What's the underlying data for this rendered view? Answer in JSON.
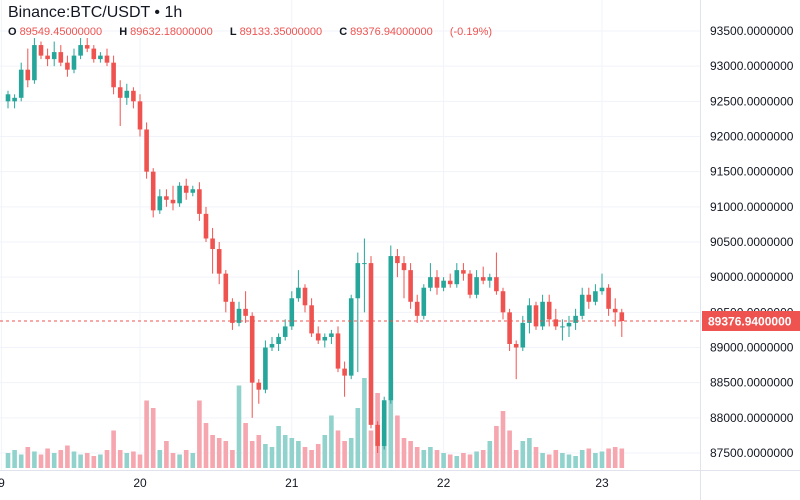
{
  "header": {
    "title": "Binance:BTC/USDT • 1h",
    "open_label": "O",
    "open": "89549.45000000",
    "high_label": "H",
    "high": "89632.18000000",
    "low_label": "L",
    "low": "89133.35000000",
    "close_label": "C",
    "close": "89376.94000000",
    "change": "(-0.19%)"
  },
  "colors": {
    "up": "#26a69a",
    "down": "#ef5350",
    "up_volume": "#92d2cc",
    "down_volume": "#f5a6ae",
    "price_line": "#ef5350",
    "grid": "#f0f3fa"
  },
  "chart_data": {
    "type": "candlestick",
    "symbol": "Binance:BTC/USDT",
    "interval": "1h",
    "ylim": [
      87300,
      93800
    ],
    "yticks": [
      "93500.0000000",
      "93000.0000000",
      "92500.0000000",
      "92000.0000000",
      "91500.0000000",
      "91000.0000000",
      "90500.0000000",
      "90000.0000000",
      "89500.0000000",
      "89000.0000000",
      "88500.0000000",
      "88000.0000000",
      "87500.0000000"
    ],
    "xticks": [
      {
        "label": "9",
        "index": -1
      },
      {
        "label": "20",
        "index": 20
      },
      {
        "label": "21",
        "index": 43
      },
      {
        "label": "22",
        "index": 66
      },
      {
        "label": "23",
        "index": 90
      }
    ],
    "last_price": 89376.94,
    "last_price_label": "89376.9400000",
    "candles": [
      {
        "o": 92500,
        "h": 92650,
        "l": 92400,
        "c": 92600
      },
      {
        "o": 92500,
        "h": 92600,
        "l": 92400,
        "c": 92550
      },
      {
        "o": 92550,
        "h": 93050,
        "l": 92500,
        "c": 92950
      },
      {
        "o": 92950,
        "h": 93250,
        "l": 92700,
        "c": 92800
      },
      {
        "o": 92800,
        "h": 93400,
        "l": 92750,
        "c": 93300
      },
      {
        "o": 93300,
        "h": 93350,
        "l": 93100,
        "c": 93150
      },
      {
        "o": 93150,
        "h": 93250,
        "l": 93000,
        "c": 93100
      },
      {
        "o": 93100,
        "h": 93350,
        "l": 93000,
        "c": 93200
      },
      {
        "o": 93200,
        "h": 93300,
        "l": 93000,
        "c": 93050
      },
      {
        "o": 93050,
        "h": 93150,
        "l": 92850,
        "c": 92950
      },
      {
        "o": 92950,
        "h": 93250,
        "l": 92900,
        "c": 93150
      },
      {
        "o": 93150,
        "h": 93400,
        "l": 93100,
        "c": 93300
      },
      {
        "o": 93300,
        "h": 93400,
        "l": 93200,
        "c": 93250
      },
      {
        "o": 93250,
        "h": 93300,
        "l": 93050,
        "c": 93100
      },
      {
        "o": 93100,
        "h": 93200,
        "l": 93050,
        "c": 93150
      },
      {
        "o": 93150,
        "h": 93250,
        "l": 93000,
        "c": 93050
      },
      {
        "o": 93050,
        "h": 93150,
        "l": 92600,
        "c": 92700
      },
      {
        "o": 92700,
        "h": 92800,
        "l": 92150,
        "c": 92550
      },
      {
        "o": 92550,
        "h": 92750,
        "l": 92450,
        "c": 92650
      },
      {
        "o": 92650,
        "h": 92700,
        "l": 92400,
        "c": 92500
      },
      {
        "o": 92500,
        "h": 92600,
        "l": 92000,
        "c": 92100
      },
      {
        "o": 92100,
        "h": 92200,
        "l": 91400,
        "c": 91500
      },
      {
        "o": 91500,
        "h": 91550,
        "l": 90850,
        "c": 90950
      },
      {
        "o": 90950,
        "h": 91250,
        "l": 90900,
        "c": 91150
      },
      {
        "o": 91150,
        "h": 91250,
        "l": 91000,
        "c": 91100
      },
      {
        "o": 91100,
        "h": 91300,
        "l": 90950,
        "c": 91050
      },
      {
        "o": 91050,
        "h": 91350,
        "l": 91000,
        "c": 91300
      },
      {
        "o": 91300,
        "h": 91400,
        "l": 91100,
        "c": 91200
      },
      {
        "o": 91200,
        "h": 91300,
        "l": 91150,
        "c": 91250
      },
      {
        "o": 91250,
        "h": 91350,
        "l": 90800,
        "c": 90900
      },
      {
        "o": 90900,
        "h": 91000,
        "l": 90500,
        "c": 90550
      },
      {
        "o": 90550,
        "h": 90700,
        "l": 90050,
        "c": 90400
      },
      {
        "o": 90400,
        "h": 90500,
        "l": 89900,
        "c": 90050
      },
      {
        "o": 90050,
        "h": 90100,
        "l": 89500,
        "c": 89650
      },
      {
        "o": 89650,
        "h": 89700,
        "l": 89250,
        "c": 89350
      },
      {
        "o": 89350,
        "h": 89650,
        "l": 89300,
        "c": 89550
      },
      {
        "o": 89550,
        "h": 89800,
        "l": 89350,
        "c": 89450
      },
      {
        "o": 89450,
        "h": 89500,
        "l": 88000,
        "c": 88500
      },
      {
        "o": 88500,
        "h": 88550,
        "l": 88200,
        "c": 88400
      },
      {
        "o": 88400,
        "h": 89100,
        "l": 88350,
        "c": 89000
      },
      {
        "o": 89000,
        "h": 89150,
        "l": 88950,
        "c": 89050
      },
      {
        "o": 89050,
        "h": 89200,
        "l": 88950,
        "c": 89150
      },
      {
        "o": 89150,
        "h": 89400,
        "l": 89100,
        "c": 89300
      },
      {
        "o": 89300,
        "h": 89800,
        "l": 89250,
        "c": 89700
      },
      {
        "o": 89700,
        "h": 90100,
        "l": 89650,
        "c": 89850
      },
      {
        "o": 89850,
        "h": 89900,
        "l": 89500,
        "c": 89600
      },
      {
        "o": 89600,
        "h": 89700,
        "l": 89150,
        "c": 89200
      },
      {
        "o": 89200,
        "h": 89300,
        "l": 89050,
        "c": 89100
      },
      {
        "o": 89100,
        "h": 89200,
        "l": 89000,
        "c": 89150
      },
      {
        "o": 89150,
        "h": 89250,
        "l": 89050,
        "c": 89200
      },
      {
        "o": 89200,
        "h": 89300,
        "l": 88650,
        "c": 88700
      },
      {
        "o": 88700,
        "h": 88800,
        "l": 88300,
        "c": 88600
      },
      {
        "o": 88600,
        "h": 89750,
        "l": 88550,
        "c": 89700
      },
      {
        "o": 89700,
        "h": 90350,
        "l": 88650,
        "c": 90200
      },
      {
        "o": 90200,
        "h": 90550,
        "l": 89500,
        "c": 90200
      },
      {
        "o": 90200,
        "h": 90300,
        "l": 87850,
        "c": 87900
      },
      {
        "o": 87900,
        "h": 87950,
        "l": 87500,
        "c": 87600
      },
      {
        "o": 87600,
        "h": 88300,
        "l": 87550,
        "c": 88250
      },
      {
        "o": 88250,
        "h": 90450,
        "l": 88200,
        "c": 90300
      },
      {
        "o": 90300,
        "h": 90400,
        "l": 90000,
        "c": 90200
      },
      {
        "o": 90200,
        "h": 90300,
        "l": 89700,
        "c": 90100
      },
      {
        "o": 90100,
        "h": 90200,
        "l": 89550,
        "c": 89650
      },
      {
        "o": 89650,
        "h": 89750,
        "l": 89350,
        "c": 89450
      },
      {
        "o": 89450,
        "h": 89900,
        "l": 89400,
        "c": 89850
      },
      {
        "o": 89850,
        "h": 90200,
        "l": 89800,
        "c": 90000
      },
      {
        "o": 90000,
        "h": 90100,
        "l": 89750,
        "c": 89850
      },
      {
        "o": 89850,
        "h": 90000,
        "l": 89800,
        "c": 89950
      },
      {
        "o": 89950,
        "h": 90050,
        "l": 89850,
        "c": 89900
      },
      {
        "o": 89900,
        "h": 90200,
        "l": 89850,
        "c": 90100
      },
      {
        "o": 90100,
        "h": 90200,
        "l": 89950,
        "c": 90050
      },
      {
        "o": 90050,
        "h": 90100,
        "l": 89700,
        "c": 89750
      },
      {
        "o": 89750,
        "h": 90100,
        "l": 89700,
        "c": 90000
      },
      {
        "o": 90000,
        "h": 90150,
        "l": 89900,
        "c": 89950
      },
      {
        "o": 89950,
        "h": 90050,
        "l": 89850,
        "c": 90000
      },
      {
        "o": 90000,
        "h": 90350,
        "l": 89750,
        "c": 89800
      },
      {
        "o": 89800,
        "h": 89850,
        "l": 89400,
        "c": 89500
      },
      {
        "o": 89500,
        "h": 89550,
        "l": 88950,
        "c": 89050
      },
      {
        "o": 89050,
        "h": 89100,
        "l": 88550,
        "c": 89000
      },
      {
        "o": 89000,
        "h": 89450,
        "l": 88950,
        "c": 89350
      },
      {
        "o": 89350,
        "h": 89700,
        "l": 89200,
        "c": 89600
      },
      {
        "o": 89600,
        "h": 89650,
        "l": 89250,
        "c": 89300
      },
      {
        "o": 89300,
        "h": 89750,
        "l": 89250,
        "c": 89650
      },
      {
        "o": 89650,
        "h": 89750,
        "l": 89300,
        "c": 89400
      },
      {
        "o": 89400,
        "h": 89550,
        "l": 89250,
        "c": 89300
      },
      {
        "o": 89300,
        "h": 89400,
        "l": 89100,
        "c": 89300
      },
      {
        "o": 89300,
        "h": 89450,
        "l": 89150,
        "c": 89350
      },
      {
        "o": 89350,
        "h": 89550,
        "l": 89250,
        "c": 89450
      },
      {
        "o": 89450,
        "h": 89850,
        "l": 89400,
        "c": 89750
      },
      {
        "o": 89750,
        "h": 89850,
        "l": 89550,
        "c": 89650
      },
      {
        "o": 89650,
        "h": 89900,
        "l": 89600,
        "c": 89800
      },
      {
        "o": 89800,
        "h": 90050,
        "l": 89750,
        "c": 89850
      },
      {
        "o": 89850,
        "h": 89900,
        "l": 89450,
        "c": 89550
      },
      {
        "o": 89550,
        "h": 89700,
        "l": 89300,
        "c": 89500
      },
      {
        "o": 89500,
        "h": 89550,
        "l": 89150,
        "c": 89377
      }
    ],
    "volume": [
      10,
      12,
      9,
      14,
      11,
      9,
      13,
      10,
      12,
      15,
      11,
      9,
      10,
      8,
      9,
      12,
      25,
      12,
      10,
      11,
      9,
      45,
      40,
      12,
      18,
      10,
      9,
      12,
      10,
      45,
      30,
      22,
      20,
      18,
      12,
      55,
      30,
      18,
      22,
      16,
      14,
      28,
      22,
      20,
      18,
      14,
      12,
      16,
      22,
      35,
      25,
      18,
      20,
      40,
      60,
      25,
      50,
      30,
      60,
      35,
      20,
      18,
      14,
      12,
      14,
      12,
      10,
      9,
      8,
      10,
      9,
      11,
      12,
      18,
      28,
      38,
      25,
      12,
      18,
      20,
      14,
      10,
      9,
      12,
      10,
      9,
      8,
      12,
      13,
      10,
      11,
      13,
      14,
      13
    ]
  }
}
